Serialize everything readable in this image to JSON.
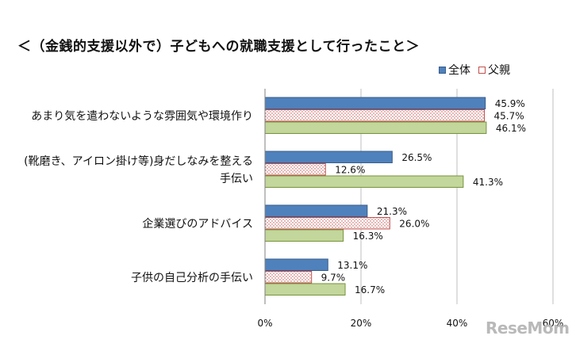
{
  "chart_data": {
    "type": "bar",
    "orientation": "horizontal",
    "title": "＜（金銭的支援以外で）子どもへの就職支援として行ったこと＞",
    "categories": [
      [
        "あまり気を遣わないような雰囲気や環境作り"
      ],
      [
        "(靴磨き、アイロン掛け等)身だしなみを整える",
        "手伝い"
      ],
      [
        "企業選びのアドバイス"
      ],
      [
        "子供の自己分析の手伝い"
      ]
    ],
    "series": [
      {
        "name": "全体",
        "values": [
          45.9,
          26.5,
          21.3,
          13.1
        ],
        "labels": [
          "45.9%",
          "26.5%",
          "21.3%",
          "13.1%"
        ],
        "color": "#4f81bd",
        "border": "#385d8a"
      },
      {
        "name": "父親",
        "values": [
          45.7,
          12.6,
          26.0,
          9.7
        ],
        "labels": [
          "45.7%",
          "12.6%",
          "26.0%",
          "9.7%"
        ],
        "color": "#ffffff",
        "border": "#c0504d",
        "pattern": "dots"
      },
      {
        "name": "",
        "values": [
          46.1,
          41.3,
          16.3,
          16.7
        ],
        "labels": [
          "46.1%",
          "41.3%",
          "16.3%",
          "16.7%"
        ],
        "color": "#c3d69b",
        "border": "#77933c"
      }
    ],
    "xlim": [
      0,
      60
    ],
    "xticks": [
      "0%",
      "20%",
      "40%",
      "60%"
    ],
    "xtick_values": [
      0,
      20,
      40,
      60
    ],
    "gridlines": true,
    "legend_position": "top-right"
  },
  "watermark": "ReseMom"
}
